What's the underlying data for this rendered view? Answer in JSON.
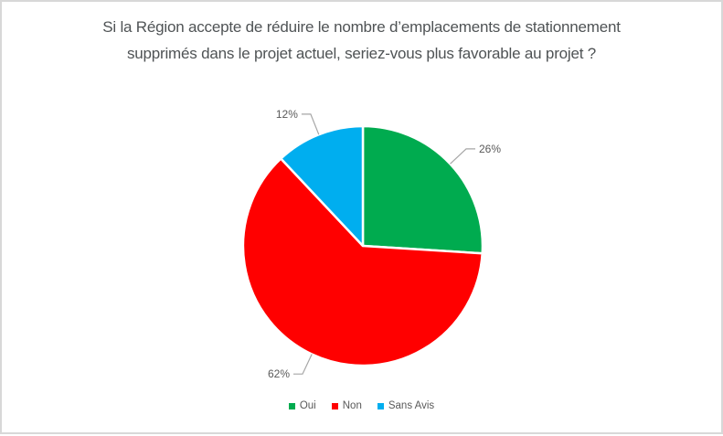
{
  "chart_data": {
    "type": "pie",
    "title": "Si la Région accepte de réduire le nombre d’emplacements de stationnement supprimés dans le projet actuel, seriez-vous plus favorable au projet ?",
    "categories": [
      "Oui",
      "Non",
      "Sans Avis"
    ],
    "values": [
      26,
      62,
      12
    ],
    "data_labels": [
      "26%",
      "62%",
      "12%"
    ],
    "colors": [
      "#00AB4F",
      "#FF0000",
      "#00AEEF"
    ],
    "start_angle_deg": 0,
    "direction": "clockwise",
    "legend": {
      "position": "bottom",
      "items": [
        "Oui",
        "Non",
        "Sans Avis"
      ]
    },
    "title_color": "#4F5355",
    "label_color": "#595959",
    "leader_line_color": "#A6A6A6",
    "slice_border_color": "#FFFFFF"
  }
}
